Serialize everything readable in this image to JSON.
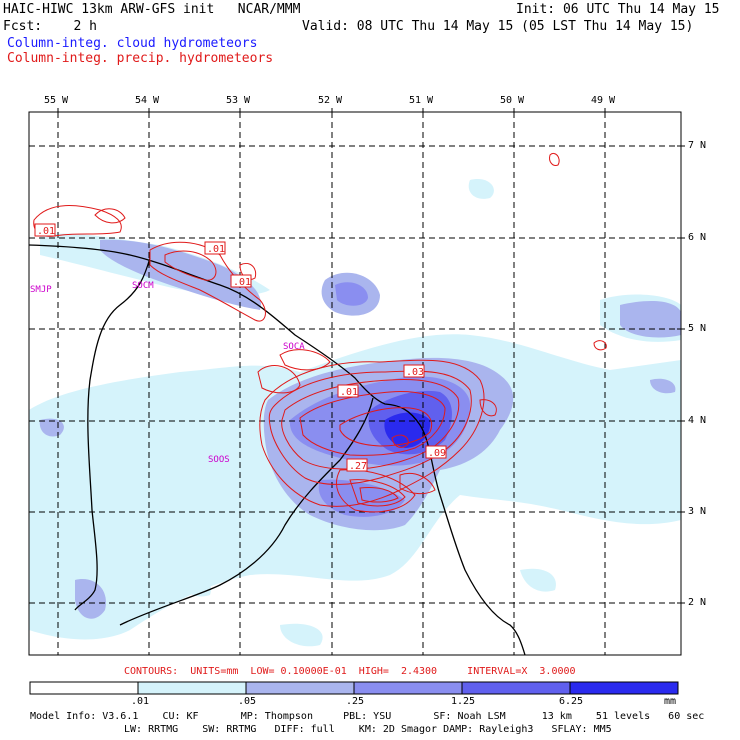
{
  "header": {
    "title": "HAIC-HIWC 13km ARW-GFS init   NCAR/MMM",
    "init": "Init: 06 UTC Thu 14 May 15",
    "fcst": "Fcst:    2 h",
    "valid": "Valid: 08 UTC Thu 14 May 15 (05 LST Thu 14 May 15)",
    "field1": "Column-integ. cloud hydrometeors",
    "field2": "Column-integ. precip. hydrometeors"
  },
  "map": {
    "lon_labels": [
      "55 W",
      "54 W",
      "53 W",
      "52 W",
      "51 W",
      "50 W",
      "49 W"
    ],
    "lat_labels": [
      "7 N",
      "6 N",
      "5 N",
      "4 N",
      "3 N",
      "2 N"
    ],
    "stations": [
      "SMJP",
      "SOCM",
      "SOCA",
      "SOOS"
    ],
    "contour_labels": [
      ".01",
      ".01",
      ".01",
      ".01",
      ".03",
      ".27",
      ".09"
    ]
  },
  "contours_info": "CONTOURS:  UNITS=mm  LOW= 0.10000E-01  HIGH=  2.4300     INTERVAL=X  3.0000",
  "colorbar": {
    "ticks": [
      ".01",
      ".05",
      ".25",
      "1.25",
      "6.25"
    ],
    "units": "mm",
    "colors": [
      "#ffffff",
      "#d5f3fb",
      "#aab5ee",
      "#8a8ef0",
      "#6060ee",
      "#2a2aee"
    ]
  },
  "model_info": {
    "line1": "Model Info: V3.6.1    CU: KF       MP: Thompson     PBL: YSU       SF: Noah LSM      13 km    51 levels   60 sec",
    "line2": "LW: RRTMG    SW: RRTMG   DIFF: full    KM: 2D Smagor DAMP: Rayleigh3   SFLAY: MM5"
  }
}
